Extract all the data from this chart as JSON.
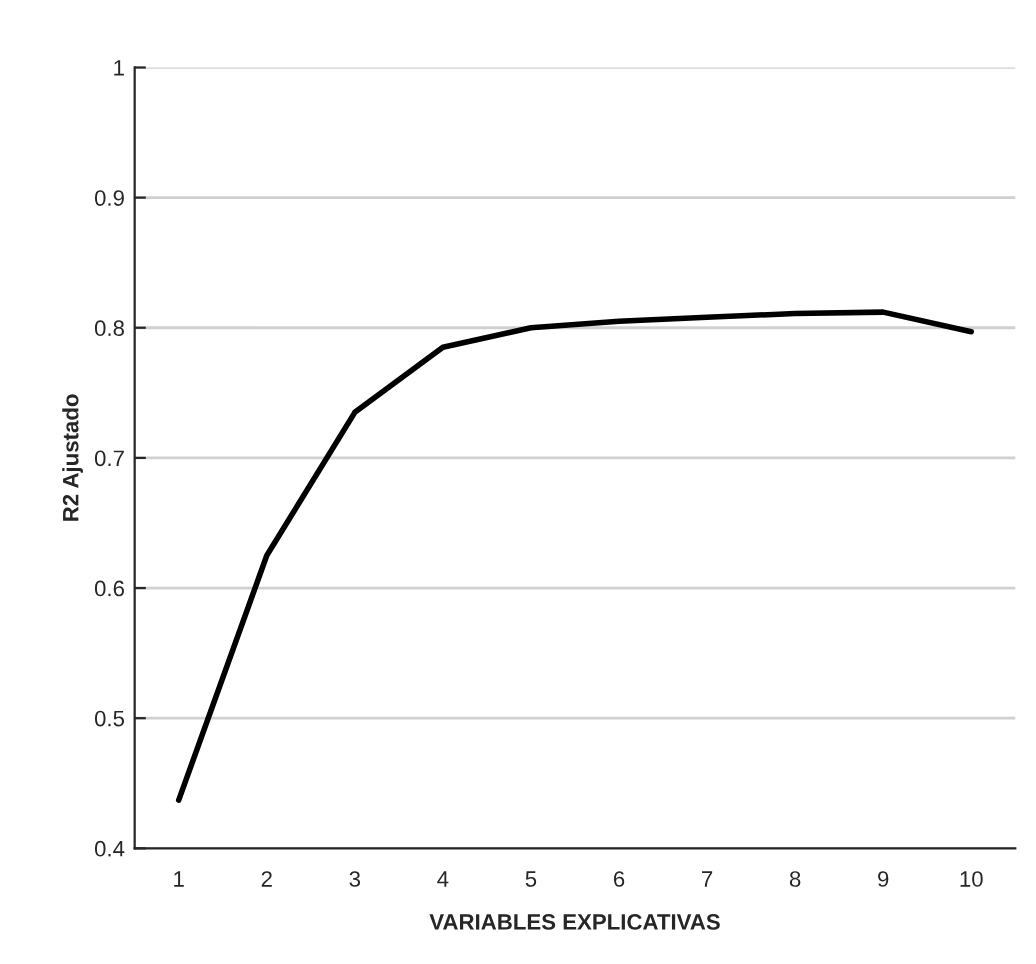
{
  "chart_data": {
    "type": "line",
    "xlabel": "VARIABLES EXPLICATIVAS",
    "ylabel": "R2 Ajustado",
    "categories": [
      "1",
      "2",
      "3",
      "4",
      "5",
      "6",
      "7",
      "8",
      "9",
      "10"
    ],
    "series": [
      {
        "color": "#000000",
        "values": [
          0.437,
          0.625,
          0.735,
          0.785,
          0.8,
          0.805,
          0.808,
          0.811,
          0.812,
          0.797
        ]
      }
    ],
    "ylim": [
      0.4,
      1
    ],
    "yticks": [
      0.4,
      0.5,
      0.6,
      0.7,
      0.8,
      0.9,
      1
    ],
    "grid": "y",
    "legend": false,
    "marker": "none",
    "line_style": "solid"
  }
}
